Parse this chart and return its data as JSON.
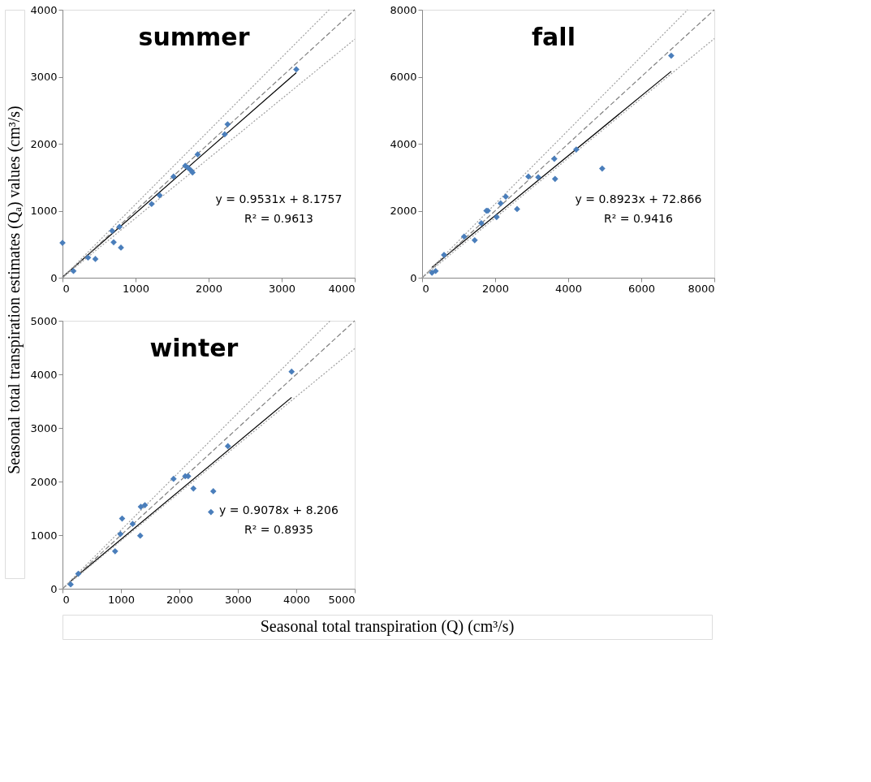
{
  "chart_data": [
    {
      "type": "scatter",
      "title": "summer",
      "ylabel": "Seasonal total transpiration estimates (Qₐ) values (cm³/s)",
      "xlim": [
        0,
        4000
      ],
      "ylim": [
        0,
        4000
      ],
      "xticks": [
        0,
        1000,
        2000,
        3000,
        4000
      ],
      "yticks": [
        0,
        1000,
        2000,
        3000,
        4000
      ],
      "grid": false,
      "marker": "diamond",
      "annotations": [
        "y = 0.9531x + 8.1757",
        "R² = 0.9613"
      ],
      "series": [
        {
          "type": "scatter",
          "color": "#4a7ebb",
          "x": [
            0,
            150,
            350,
            450,
            680,
            700,
            780,
            800,
            1220,
            1330,
            1520,
            1680,
            1720,
            1760,
            1780,
            1850,
            2220,
            2260,
            3200
          ],
          "values": [
            520,
            100,
            300,
            280,
            700,
            530,
            760,
            450,
            1100,
            1230,
            1510,
            1670,
            1640,
            1600,
            1570,
            1840,
            2140,
            2290,
            3110
          ]
        },
        {
          "type": "line",
          "marker": "none",
          "color": "#000000",
          "line_style": "solid",
          "x": [
            0,
            3200
          ],
          "values": [
            10,
            3060
          ]
        },
        {
          "type": "line",
          "marker": "none",
          "color": "#808080",
          "line_style": "dashed",
          "x": [
            0,
            4000
          ],
          "values": [
            0,
            4000
          ]
        },
        {
          "type": "line",
          "marker": "none",
          "color": "#a0a0a0",
          "line_style": "dotted",
          "x": [
            0,
            3650
          ],
          "values": [
            0,
            4000
          ]
        },
        {
          "type": "line",
          "marker": "none",
          "color": "#a0a0a0",
          "line_style": "dotted",
          "x": [
            0,
            4000
          ],
          "values": [
            0,
            3560
          ]
        }
      ]
    },
    {
      "type": "scatter",
      "title": "fall",
      "xlim": [
        0,
        8000
      ],
      "ylim": [
        0,
        8000
      ],
      "xticks": [
        0,
        2000,
        4000,
        6000,
        8000
      ],
      "yticks": [
        0,
        2000,
        4000,
        6000,
        8000
      ],
      "grid": false,
      "marker": "diamond",
      "annotations": [
        "y = 0.8923x + 72.866",
        "R² = 0.9416"
      ],
      "series": [
        {
          "type": "scatter",
          "color": "#4a7ebb",
          "x": [
            270,
            370,
            600,
            1150,
            1440,
            1620,
            1760,
            1800,
            2040,
            2150,
            2290,
            2600,
            2910,
            3180,
            3620,
            3640,
            4220,
            4930,
            6820
          ],
          "values": [
            150,
            200,
            680,
            1230,
            1120,
            1630,
            2000,
            2000,
            1810,
            2220,
            2420,
            2050,
            3020,
            3000,
            3550,
            2950,
            3830,
            3260,
            6630
          ]
        },
        {
          "type": "line",
          "marker": "none",
          "color": "#000000",
          "line_style": "solid",
          "x": [
            270,
            6820
          ],
          "values": [
            310,
            6160
          ]
        },
        {
          "type": "line",
          "marker": "none",
          "color": "#808080",
          "line_style": "dashed",
          "x": [
            0,
            8000
          ],
          "values": [
            0,
            8000
          ]
        },
        {
          "type": "line",
          "marker": "none",
          "color": "#a0a0a0",
          "line_style": "dotted",
          "x": [
            0,
            7270
          ],
          "values": [
            0,
            8000
          ]
        },
        {
          "type": "line",
          "marker": "none",
          "color": "#a0a0a0",
          "line_style": "dotted",
          "x": [
            0,
            8000
          ],
          "values": [
            0,
            7140
          ]
        }
      ]
    },
    {
      "type": "scatter",
      "title": "winter",
      "xlabel": "Seasonal total transpiration (Q) (cm³/s)",
      "xlim": [
        0,
        5000
      ],
      "ylim": [
        0,
        5000
      ],
      "xticks": [
        0,
        1000,
        2000,
        3000,
        4000,
        5000
      ],
      "yticks": [
        0,
        1000,
        2000,
        3000,
        4000,
        5000
      ],
      "grid": false,
      "marker": "diamond",
      "annotations": [
        "y = 0.9078x + 8.206",
        "R² = 0.8935"
      ],
      "series": [
        {
          "type": "scatter",
          "color": "#4a7ebb",
          "x": [
            140,
            270,
            900,
            990,
            1020,
            1200,
            1330,
            1340,
            1410,
            1900,
            2100,
            2150,
            2240,
            2540,
            2580,
            2830,
            3920
          ],
          "values": [
            80,
            280,
            700,
            1020,
            1310,
            1210,
            990,
            1530,
            1560,
            2050,
            2100,
            2100,
            1870,
            1430,
            1820,
            2660,
            4050
          ]
        },
        {
          "type": "line",
          "marker": "none",
          "color": "#000000",
          "line_style": "solid",
          "x": [
            140,
            3920
          ],
          "values": [
            140,
            3570
          ]
        },
        {
          "type": "line",
          "marker": "none",
          "color": "#808080",
          "line_style": "dashed",
          "x": [
            0,
            5000
          ],
          "values": [
            0,
            5000
          ]
        },
        {
          "type": "line",
          "marker": "none",
          "color": "#a0a0a0",
          "line_style": "dotted",
          "x": [
            0,
            4580
          ],
          "values": [
            0,
            5000
          ]
        },
        {
          "type": "line",
          "marker": "none",
          "color": "#a0a0a0",
          "line_style": "dotted",
          "x": [
            0,
            5000
          ],
          "values": [
            0,
            4480
          ]
        }
      ]
    }
  ]
}
